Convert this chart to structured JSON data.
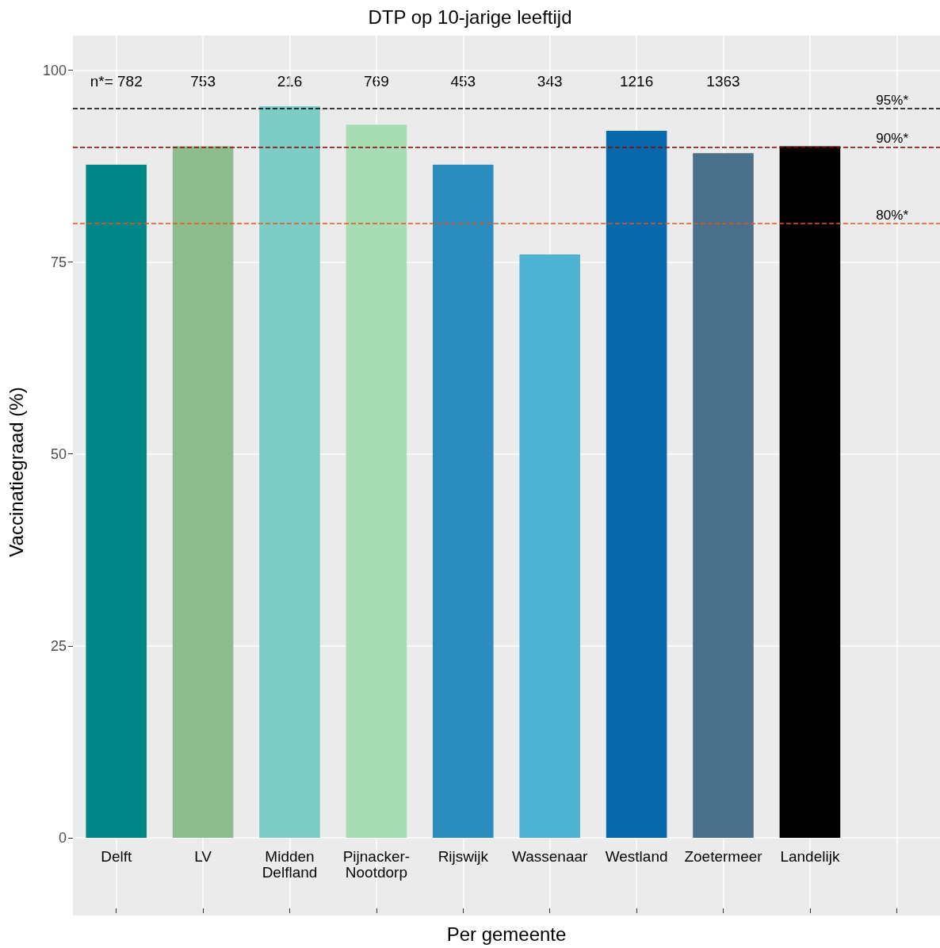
{
  "chart_data": {
    "type": "bar",
    "title": "DTP op 10-jarige leeftijd",
    "xlabel": "Per gemeente",
    "ylabel": "Vaccinatiegraad (%)",
    "categories": [
      "Delft",
      "LV",
      "Midden\nDelfland",
      "Pijnacker-\nNootdorp",
      "Rijswijk",
      "Wassenaar",
      "Westland",
      "Zoetermeer",
      "Landelijk",
      null
    ],
    "values": [
      87.7,
      90.1,
      95.3,
      92.9,
      87.7,
      76.0,
      92.1,
      89.2,
      90.1,
      null
    ],
    "colors": [
      "#008787",
      "#8fbc8f",
      "#7ccbc4",
      "#a8dcb5",
      "#2b8cbe",
      "#4eb3d3",
      "#0868ac",
      "#4a708b",
      "#000000",
      "#000000"
    ],
    "ylim": [
      -9.2,
      104.5
    ],
    "yticks": [
      0,
      25,
      50,
      75,
      100
    ],
    "grid": true,
    "ref_lines": [
      {
        "axis": "y",
        "value": 95,
        "label": "95%*",
        "color": "#000000",
        "line_style": "dashed"
      },
      {
        "axis": "y",
        "value": 90,
        "label": "90%*",
        "color": "#8b0000",
        "line_style": "dashed"
      },
      {
        "axis": "y",
        "value": 80,
        "label": "80%*",
        "color": "#e8541e",
        "line_style": "dashed"
      }
    ],
    "annotations": [
      "n*= 782",
      "753",
      "216",
      "769",
      "453",
      "343",
      "1216",
      "1363"
    ]
  }
}
